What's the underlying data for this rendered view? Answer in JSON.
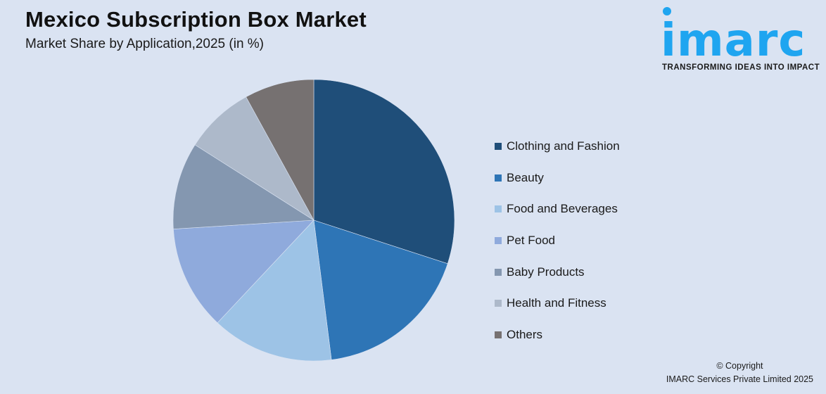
{
  "header": {
    "title": "Mexico Subscription Box Market",
    "subtitle": "Market Share by Application,2025 (in %)"
  },
  "logo": {
    "wordmark": "imarc",
    "tagline": "TRANSFORMING IDEAS INTO IMPACT",
    "color": "#1fa5f0"
  },
  "footer": {
    "line1": "© Copyright",
    "line2": "IMARC Services Private Limited 2025"
  },
  "chart_data": {
    "type": "pie",
    "title": "Mexico Subscription Box Market",
    "subtitle": "Market Share by Application,2025 (in %)",
    "categories": [
      "Clothing and Fashion",
      "Beauty",
      "Food and Beverages",
      "Pet Food",
      "Baby Products",
      "Health and Fitness",
      "Others"
    ],
    "values": [
      30,
      18,
      14,
      12,
      10,
      8,
      8
    ],
    "colors": [
      "#1f4e79",
      "#2e75b6",
      "#9dc3e6",
      "#8faadc",
      "#8497b0",
      "#adb9ca",
      "#767171"
    ],
    "start_angle": 0,
    "direction": "clockwise",
    "legend_position": "right"
  }
}
